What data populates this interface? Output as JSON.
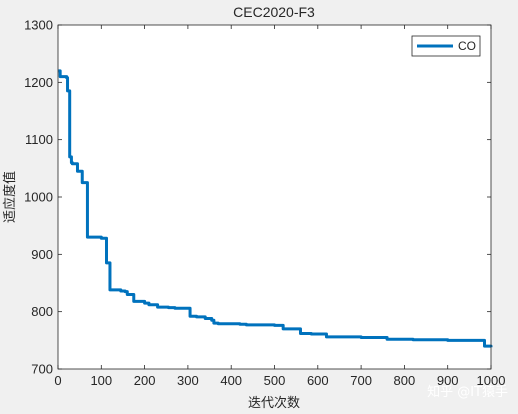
{
  "watermark": "知乎 @IT猿手",
  "chart_data": {
    "type": "line",
    "title": "CEC2020-F3",
    "xlabel": "迭代次数",
    "ylabel": "适应度值",
    "xlim": [
      0,
      1000
    ],
    "ylim": [
      700,
      1300
    ],
    "xticks": [
      0,
      100,
      200,
      300,
      400,
      500,
      600,
      700,
      800,
      900,
      1000
    ],
    "yticks": [
      700,
      800,
      900,
      1000,
      1100,
      1200,
      1300
    ],
    "grid": false,
    "legend": "top-right",
    "series": [
      {
        "name": "CO",
        "color": "#0072BD",
        "step": true,
        "x": [
          1,
          5,
          20,
          22,
          27,
          31,
          33,
          45,
          56,
          68,
          100,
          112,
          120,
          135,
          145,
          155,
          160,
          175,
          190,
          200,
          210,
          230,
          255,
          270,
          290,
          305,
          320,
          340,
          355,
          360,
          370,
          420,
          435,
          500,
          520,
          560,
          585,
          620,
          700,
          760,
          820,
          900,
          985,
          1000
        ],
        "y": [
          1220,
          1210,
          1208,
          1185,
          1070,
          1060,
          1058,
          1045,
          1025,
          930,
          928,
          885,
          838,
          838,
          836,
          835,
          830,
          818,
          818,
          815,
          812,
          808,
          807,
          806,
          806,
          792,
          791,
          788,
          785,
          780,
          779,
          778,
          777,
          776,
          770,
          762,
          761,
          756,
          755,
          752,
          751,
          750,
          740,
          738
        ]
      }
    ]
  }
}
